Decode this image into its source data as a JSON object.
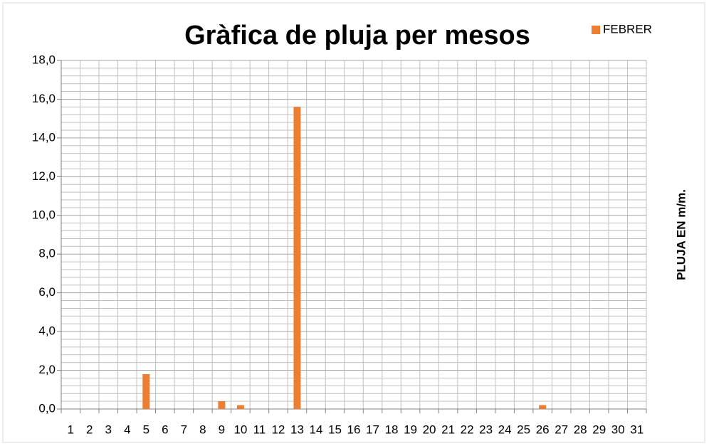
{
  "chart_data": {
    "type": "bar",
    "title": "Gràfica de pluja per mesos",
    "y_label": "PLUJA EN m/m.",
    "categories": [
      "1",
      "2",
      "3",
      "4",
      "5",
      "6",
      "7",
      "8",
      "9",
      "10",
      "11",
      "12",
      "13",
      "14",
      "15",
      "16",
      "17",
      "18",
      "19",
      "20",
      "21",
      "22",
      "23",
      "24",
      "25",
      "26",
      "27",
      "28",
      "29",
      "30",
      "31"
    ],
    "series": [
      {
        "name": "FEBRER",
        "color": "#ed7d31",
        "values": [
          0,
          0,
          0,
          0,
          1.8,
          0,
          0,
          0,
          0.4,
          0.2,
          0,
          0,
          15.6,
          0,
          0,
          0,
          0,
          0,
          0,
          0,
          0,
          0,
          0,
          0,
          0,
          0.2,
          0,
          0,
          0,
          0,
          0
        ]
      }
    ],
    "ylim": [
      0,
      18
    ],
    "yticks": [
      {
        "value": 0,
        "label": "0,0"
      },
      {
        "value": 2,
        "label": "2,0"
      },
      {
        "value": 4,
        "label": "4,0"
      },
      {
        "value": 6,
        "label": "6,0"
      },
      {
        "value": 8,
        "label": "8,0"
      },
      {
        "value": 10,
        "label": "10,0"
      },
      {
        "value": 12,
        "label": "12,0"
      },
      {
        "value": 14,
        "label": "14,0"
      },
      {
        "value": 16,
        "label": "16,0"
      },
      {
        "value": 18,
        "label": "18,0"
      }
    ],
    "y_minor_ticks": [
      0.4,
      0.8,
      1.2,
      1.6,
      2.4,
      2.8,
      3.2,
      3.6,
      4.4,
      4.8,
      5.2,
      5.6,
      6.4,
      6.8,
      7.2,
      7.6,
      8.4,
      8.8,
      9.2,
      9.6,
      10.4,
      10.8,
      11.2,
      11.6,
      12.4,
      12.8,
      13.2,
      13.6,
      14.4,
      14.8,
      15.2,
      15.6,
      16.4,
      16.8,
      17.2,
      17.6
    ],
    "grid": true,
    "legend": "top-right"
  }
}
